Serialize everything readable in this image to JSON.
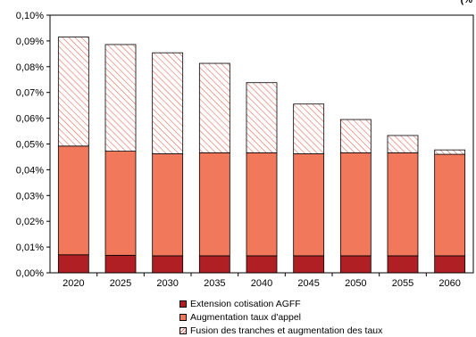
{
  "chart_data": {
    "type": "bar",
    "stacked": true,
    "unit_label": "(%",
    "categories": [
      "2020",
      "2025",
      "2030",
      "2035",
      "2040",
      "2045",
      "2050",
      "2055",
      "2060"
    ],
    "y_ticks": [
      "0,00%",
      "0,01%",
      "0,02%",
      "0,03%",
      "0,04%",
      "0,05%",
      "0,06%",
      "0,07%",
      "0,08%",
      "0,09%",
      "0,10%"
    ],
    "ylim": [
      0,
      0.1
    ],
    "grid": false,
    "legend_position": "bottom",
    "series": [
      {
        "name": "Extension cotisation AGFF",
        "color": "#b01f24",
        "pattern": "solid",
        "values": [
          0.007,
          0.0068,
          0.0066,
          0.0066,
          0.0066,
          0.0066,
          0.0066,
          0.0066,
          0.0066
        ]
      },
      {
        "name": "Augmentation taux d'appel",
        "color": "#f2785c",
        "pattern": "solid",
        "values": [
          0.0422,
          0.0404,
          0.0396,
          0.04,
          0.04,
          0.0396,
          0.04,
          0.04,
          0.0394
        ]
      },
      {
        "name": "Fusion des tranches et augmentation des taux",
        "color": "#e86a5a",
        "pattern": "hatched",
        "values": [
          0.0423,
          0.0414,
          0.0392,
          0.0347,
          0.0272,
          0.0193,
          0.0129,
          0.0067,
          0.0017
        ]
      }
    ]
  }
}
